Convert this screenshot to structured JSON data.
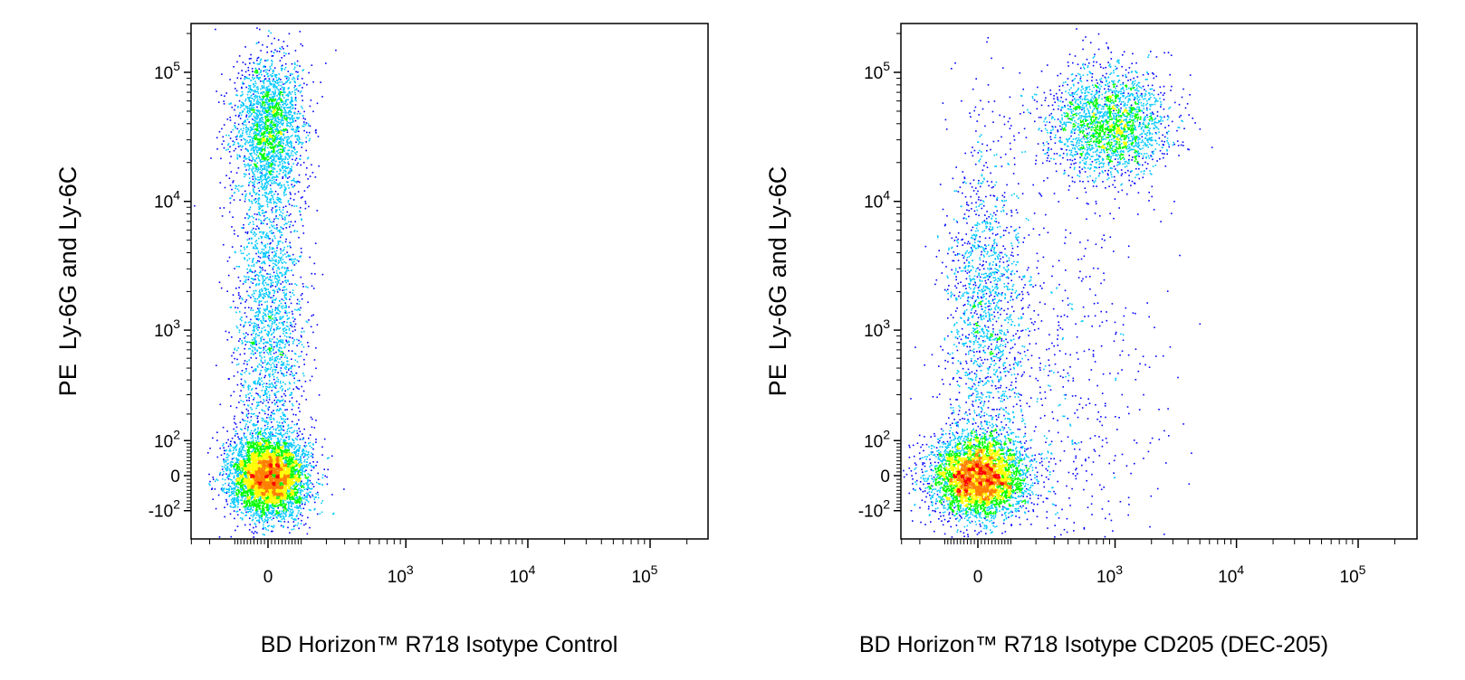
{
  "chart_data": [
    {
      "type": "scatter",
      "subtype": "flow-cytometry-density-dot-plot",
      "xlabel": "BD Horizon™ R718 Isotype Control",
      "ylabel": "PE  Ly-6G and Ly-6C",
      "x_scale": "biexponential",
      "y_scale": "biexponential",
      "xlim": [
        -300,
        200000
      ],
      "ylim": [
        -200,
        250000
      ],
      "x_ticks": [
        {
          "value": 0,
          "label": "0"
        },
        {
          "value": 1000,
          "label": "10",
          "sup": "3"
        },
        {
          "value": 10000,
          "label": "10",
          "sup": "4"
        },
        {
          "value": 100000,
          "label": "10",
          "sup": "5"
        }
      ],
      "y_ticks": [
        {
          "value": -100,
          "label": "-10",
          "sup": "2"
        },
        {
          "value": 0,
          "label": "0"
        },
        {
          "value": 100,
          "label": "10",
          "sup": "2"
        },
        {
          "value": 1000,
          "label": "10",
          "sup": "3"
        },
        {
          "value": 10000,
          "label": "10",
          "sup": "4"
        },
        {
          "value": 100000,
          "label": "10",
          "sup": "5"
        }
      ],
      "density_colors": [
        "#0000ff",
        "#00c8ff",
        "#00ff00",
        "#ffff00",
        "#ff8000",
        "#ff0000"
      ],
      "populations": [
        {
          "x_center": 0,
          "y_center": 0,
          "x_spread": 55,
          "y_spread": 55,
          "weight": 0.55,
          "peak_density": "red"
        },
        {
          "x_center": 0,
          "y_center": 40000,
          "x_spread": 50,
          "y_spread": 35000,
          "weight": 0.22,
          "peak_density": "green"
        },
        {
          "x_center": 0,
          "y_center": 1500,
          "x_spread": 50,
          "y_spread": 6000,
          "weight": 0.23,
          "peak_density": "blue"
        }
      ]
    },
    {
      "type": "scatter",
      "subtype": "flow-cytometry-density-dot-plot",
      "xlabel": "BD Horizon™ R718 Isotype CD205 (DEC-205)",
      "ylabel": "PE  Ly-6G and Ly-6C",
      "x_scale": "biexponential",
      "y_scale": "biexponential",
      "xlim": [
        -300,
        200000
      ],
      "ylim": [
        -200,
        250000
      ],
      "x_ticks": [
        {
          "value": 0,
          "label": "0"
        },
        {
          "value": 1000,
          "label": "10",
          "sup": "3"
        },
        {
          "value": 10000,
          "label": "10",
          "sup": "4"
        },
        {
          "value": 100000,
          "label": "10",
          "sup": "5"
        }
      ],
      "y_ticks": [
        {
          "value": -100,
          "label": "-10",
          "sup": "2"
        },
        {
          "value": 0,
          "label": "0"
        },
        {
          "value": 100,
          "label": "10",
          "sup": "2"
        },
        {
          "value": 1000,
          "label": "10",
          "sup": "3"
        },
        {
          "value": 10000,
          "label": "10",
          "sup": "4"
        },
        {
          "value": 100000,
          "label": "10",
          "sup": "5"
        }
      ],
      "density_colors": [
        "#0000ff",
        "#00c8ff",
        "#00ff00",
        "#ffff00",
        "#ff8000",
        "#ff0000"
      ],
      "populations": [
        {
          "x_center": 0,
          "y_center": 0,
          "x_spread": 70,
          "y_spread": 55,
          "weight": 0.5,
          "peak_density": "red"
        },
        {
          "x_center": 900,
          "y_center": 40000,
          "x_spread": 700,
          "y_spread": 25000,
          "weight": 0.25,
          "peak_density": "green"
        },
        {
          "x_center": 20,
          "y_center": 1500,
          "x_spread": 60,
          "y_spread": 6000,
          "weight": 0.17,
          "peak_density": "blue"
        },
        {
          "x_center": 300,
          "y_center": 200,
          "x_spread": 600,
          "y_spread": 2000,
          "weight": 0.08,
          "peak_density": "blue"
        }
      ]
    }
  ]
}
